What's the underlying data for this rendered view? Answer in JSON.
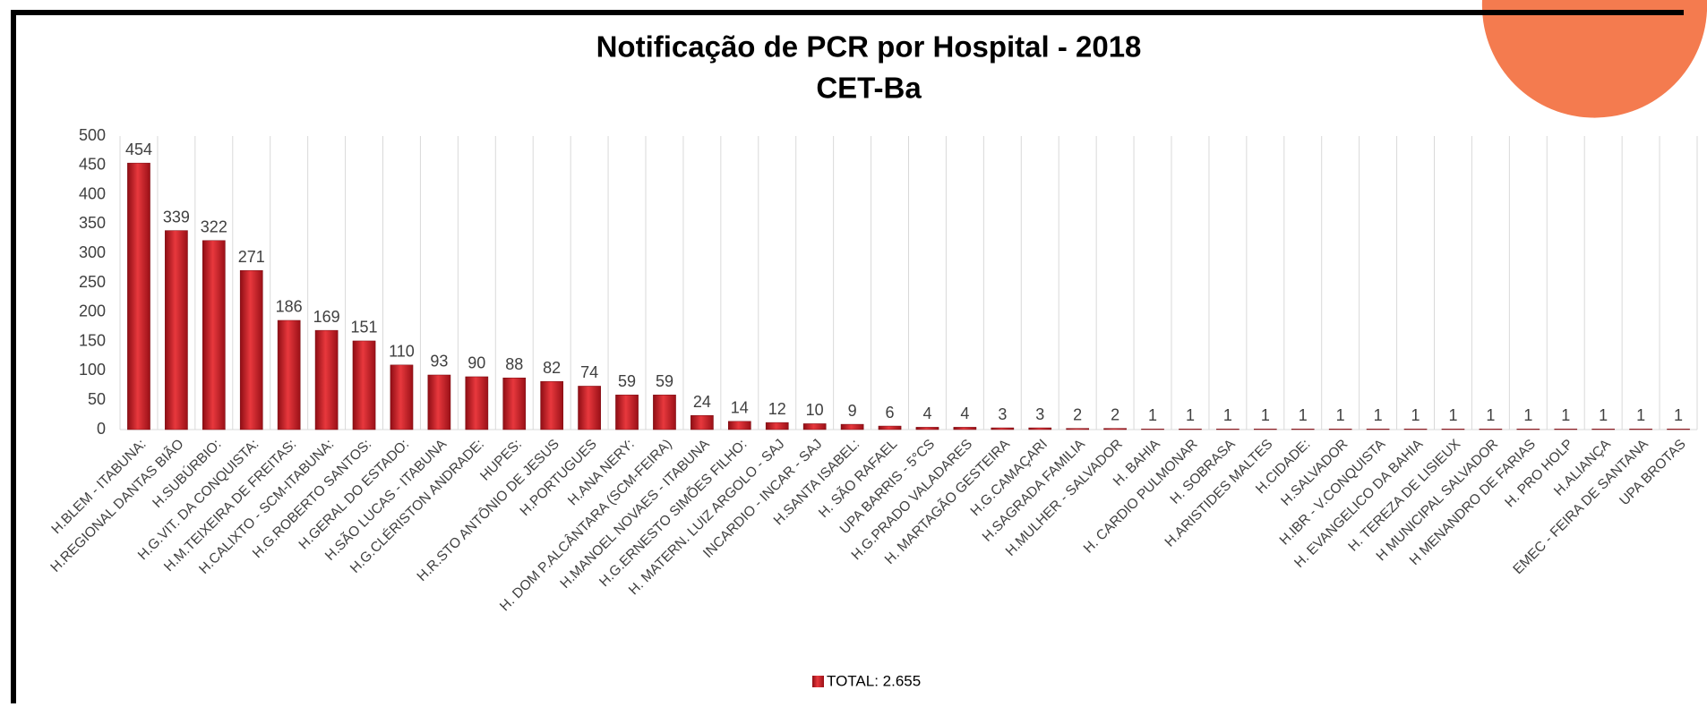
{
  "chart_data": {
    "type": "bar",
    "title": "Notificação de PCR por Hospital - 2018",
    "subtitle": "CET-Ba",
    "categories": [
      "H.BLEM - ITABUNA:",
      "H.REGIONAL DANTAS BIÃO",
      "H.SUBÚRBIO:",
      "H.G.VIT. DA CONQUISTA:",
      "H.M.TEIXEIRA DE FREITAS:",
      "H.CALIXTO - SCM-ITABUNA:",
      "H.G.ROBERTO SANTOS:",
      "H.GERAL DO ESTADO:",
      "H.SÃO LUCAS - ITABUNA",
      "H.G.CLÉRISTON ANDRADE:",
      "HUPES:",
      "H.R.STO ANTÔNIO DE JESUS",
      "H.PORTUGUES",
      "H.ANA NERY:",
      "H. DOM P.ALCÂNTARA (SCM-FEIRA)",
      "H.MANOEL NOVAES - ITABUNA",
      "H.G.ERNESTO SIMÕES FILHO:",
      "H. MATERN. LUIZ ARGOLO - SAJ",
      "INCARDIO - INCAR - SAJ",
      "H.SANTA ISABEL:",
      "H. SÃO RAFAEL",
      "UPA BARRIS - 5°CS",
      "H.G.PRADO VALADARES",
      "H. MARTAGÃO GESTEIRA",
      "H.G.CAMAÇARI",
      "H.SAGRADA FAMILIA",
      "H.MULHER - SALVADOR",
      "H. BAHIA",
      "H. CARDIO PULMONAR",
      "H. SOBRASA",
      "H.ARISTIDES MALTES",
      "H.CIDADE:",
      "H.SALVADOR",
      "H.IBR - V.CONQUISTA",
      "H. EVANGELICO DA BAHIA",
      "H. TEREZA DE LISIEUX",
      "H MUNICIPAL SALVADOR",
      "H MENANDRO DE FARIAS",
      "H. PRO HOLP",
      "H.ALIANÇA",
      "EMEC - FEIRA DE SANTANA",
      "UPA BROTAS"
    ],
    "series": [
      {
        "name": "TOTAL: 2.655",
        "color": "#c8102e",
        "values": [
          454,
          339,
          322,
          271,
          186,
          169,
          151,
          110,
          93,
          90,
          88,
          82,
          74,
          59,
          59,
          24,
          14,
          12,
          10,
          9,
          6,
          4,
          4,
          3,
          3,
          2,
          2,
          1,
          1,
          1,
          1,
          1,
          1,
          1,
          1,
          1,
          1,
          1,
          1,
          1,
          1,
          1
        ]
      }
    ],
    "ylim": [
      0,
      500
    ],
    "yticks": [
      0,
      50,
      100,
      150,
      200,
      250,
      300,
      350,
      400,
      450,
      500
    ],
    "legend": "bottom"
  }
}
